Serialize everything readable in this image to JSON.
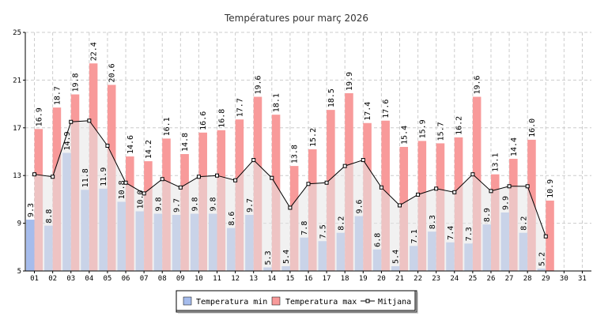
{
  "chart_data": {
    "type": "bar",
    "title": "Températures pour març 2026",
    "categories": [
      "01",
      "02",
      "03",
      "04",
      "05",
      "06",
      "07",
      "08",
      "09",
      "10",
      "11",
      "12",
      "13",
      "14",
      "15",
      "16",
      "17",
      "18",
      "19",
      "20",
      "21",
      "22",
      "23",
      "24",
      "25",
      "26",
      "27",
      "28",
      "29",
      "30",
      "31"
    ],
    "ylim": [
      5,
      25
    ],
    "yticks": [
      5,
      9,
      13,
      17,
      21,
      25
    ],
    "grid": true,
    "legend_position": "bottom-center",
    "series": [
      {
        "name": "Temperatura min",
        "type": "bar",
        "color": "#a6bcec",
        "values": [
          9.3,
          8.8,
          14.9,
          11.8,
          11.9,
          10.8,
          10.0,
          9.8,
          9.7,
          9.8,
          9.8,
          8.6,
          9.7,
          5.3,
          5.4,
          7.8,
          7.5,
          8.2,
          9.6,
          6.8,
          5.4,
          7.1,
          8.3,
          7.4,
          7.3,
          8.9,
          9.9,
          8.2,
          5.2,
          null,
          null
        ]
      },
      {
        "name": "Temperatura max",
        "type": "bar",
        "color": "#f89a9a",
        "values": [
          16.9,
          18.7,
          19.8,
          22.4,
          20.6,
          14.6,
          14.2,
          16.1,
          14.8,
          16.6,
          16.8,
          17.7,
          19.6,
          18.1,
          13.8,
          15.2,
          18.5,
          19.9,
          17.4,
          17.6,
          15.4,
          15.9,
          15.7,
          16.2,
          19.6,
          13.1,
          14.4,
          16.0,
          10.9,
          null,
          null
        ]
      },
      {
        "name": "Mitjana",
        "type": "line",
        "color": "#000000",
        "values": [
          13.1,
          12.9,
          17.5,
          17.6,
          15.5,
          12.4,
          11.5,
          12.7,
          12.0,
          12.9,
          13.0,
          12.6,
          14.3,
          12.8,
          10.3,
          12.3,
          12.4,
          13.8,
          14.3,
          12.0,
          10.5,
          11.4,
          11.9,
          11.6,
          13.1,
          11.7,
          12.1,
          12.1,
          7.9,
          null,
          null
        ]
      }
    ],
    "colors": {
      "band": "#e6e6e6",
      "grid": "#cccccc",
      "axis": "#000000",
      "title": "#333333"
    }
  }
}
